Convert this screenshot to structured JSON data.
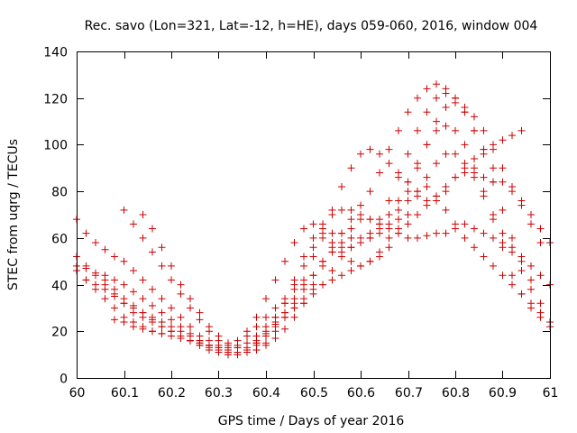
{
  "chart_data": {
    "type": "scatter",
    "title": "Rec. savo (Lon=321, Lat=-12, h=HE), days 059-060, 2016, window 004",
    "xlabel": "GPS time / Days of year 2016",
    "ylabel": "STEC from uqrg / TECUs",
    "xlim": [
      60,
      61
    ],
    "ylim": [
      0,
      140
    ],
    "xticks": [
      60,
      60.1,
      60.2,
      60.3,
      60.4,
      60.5,
      60.6,
      60.7,
      60.8,
      60.9,
      61
    ],
    "xtick_labels": [
      "60",
      "60.1",
      "60.2",
      "60.3",
      "60.4",
      "60.5",
      "60.6",
      "60.7",
      "60.8",
      "60.9",
      "61"
    ],
    "yticks": [
      0,
      20,
      40,
      60,
      80,
      100,
      120,
      140
    ],
    "ytick_labels": [
      "0",
      "20",
      "40",
      "60",
      "80",
      "100",
      "120",
      "140"
    ],
    "grid": false,
    "marker": "plus",
    "color": "#cc0000",
    "series": [
      {
        "x": [
          60.0,
          60.02,
          60.04,
          60.06,
          60.08,
          60.1,
          60.12,
          60.14,
          60.16,
          60.18,
          60.2,
          60.22,
          60.24,
          60.26,
          60.28,
          60.3,
          60.32,
          60.34,
          60.36,
          60.38,
          60.4,
          60.42,
          60.44,
          60.46,
          60.48,
          60.5,
          60.52,
          60.54,
          60.56,
          60.58,
          60.6,
          60.62,
          60.64,
          60.66,
          60.68,
          60.7,
          60.72,
          60.74,
          60.76,
          60.78,
          60.8,
          60.82,
          60.84,
          60.86,
          60.88,
          60.9,
          60.92,
          60.94,
          60.96,
          60.98,
          61.0
        ],
        "y": [
          68,
          62,
          58,
          55,
          52,
          50,
          46,
          42,
          38,
          34,
          30,
          26,
          22,
          18,
          16,
          14,
          14,
          16,
          20,
          26,
          34,
          42,
          50,
          58,
          64,
          66,
          64,
          62,
          62,
          64,
          68,
          68,
          66,
          64,
          62,
          60,
          60,
          61,
          62,
          62,
          64,
          66,
          64,
          62,
          60,
          58,
          56,
          52,
          48,
          44,
          40
        ]
      },
      {
        "x": [
          60.0,
          60.02,
          60.04,
          60.06,
          60.08,
          60.1,
          60.12,
          60.14,
          60.16,
          60.18,
          60.2,
          60.22,
          60.24,
          60.26,
          60.28,
          60.3,
          60.32,
          60.34,
          60.36,
          60.38,
          60.4,
          60.42,
          60.44,
          60.46,
          60.48,
          60.5,
          60.52,
          60.54,
          60.56,
          60.58,
          60.6,
          60.62,
          60.64,
          60.66,
          60.68,
          60.7,
          60.72,
          60.74,
          60.76,
          60.78,
          60.8,
          60.82,
          60.84,
          60.86,
          60.88,
          60.9,
          60.92,
          60.94,
          60.96,
          60.98,
          61.0
        ],
        "y": [
          48,
          47,
          45,
          42,
          38,
          34,
          31,
          28,
          25,
          22,
          20,
          18,
          16,
          14,
          13,
          12,
          12,
          14,
          18,
          22,
          26,
          30,
          34,
          38,
          40,
          44,
          50,
          56,
          62,
          68,
          74,
          80,
          88,
          98,
          106,
          114,
          120,
          124,
          126,
          124,
          120,
          114,
          106,
          98,
          90,
          84,
          80,
          76,
          70,
          64,
          58
        ]
      },
      {
        "x": [
          60.0,
          60.02,
          60.04,
          60.06,
          60.08,
          60.1,
          60.12,
          60.14,
          60.16,
          60.18,
          60.2,
          60.22,
          60.24,
          60.26,
          60.28,
          60.3,
          60.32,
          60.34,
          60.36,
          60.38,
          60.4,
          60.42,
          60.44,
          60.46,
          60.48,
          60.5,
          60.52,
          60.54,
          60.56,
          60.58,
          60.6,
          60.62,
          60.64,
          60.66,
          60.68,
          60.7,
          60.72,
          60.74,
          60.76,
          60.78,
          60.8,
          60.82,
          60.84,
          60.86,
          60.88,
          60.9,
          60.92,
          60.94,
          60.96,
          60.98,
          61.0
        ],
        "y": [
          46,
          42,
          38,
          34,
          30,
          26,
          24,
          22,
          20,
          19,
          18,
          17,
          16,
          15,
          14,
          13,
          12,
          13,
          15,
          18,
          22,
          26,
          28,
          30,
          32,
          36,
          40,
          46,
          52,
          56,
          58,
          60,
          64,
          70,
          76,
          84,
          92,
          100,
          106,
          108,
          106,
          100,
          90,
          80,
          68,
          56,
          44,
          36,
          30,
          26,
          22
        ]
      },
      {
        "x": [
          60.0,
          60.02,
          60.04,
          60.06,
          60.08,
          60.1,
          60.12,
          60.14,
          60.16,
          60.18,
          60.2,
          60.22,
          60.24,
          60.26,
          60.28,
          60.3,
          60.32,
          60.34,
          60.36,
          60.38,
          60.4,
          60.42,
          60.44,
          60.46,
          60.48,
          60.5,
          60.52,
          60.54,
          60.56,
          60.58,
          60.6,
          60.62,
          60.64,
          60.66,
          60.68,
          60.7,
          60.72,
          60.74,
          60.76,
          60.78,
          60.8,
          60.82,
          60.84,
          60.86,
          60.88,
          60.9,
          60.92,
          60.94,
          60.96,
          60.98,
          61.0
        ],
        "y": [
          52,
          48,
          44,
          40,
          36,
          32,
          28,
          26,
          24,
          22,
          20,
          18,
          16,
          14,
          12,
          11,
          10,
          10,
          12,
          16,
          20,
          26,
          32,
          40,
          48,
          56,
          60,
          58,
          54,
          50,
          48,
          50,
          54,
          60,
          68,
          76,
          80,
          82,
          78,
          72,
          66,
          60,
          56,
          52,
          48,
          44,
          40,
          36,
          32,
          28,
          24
        ]
      },
      {
        "x": [
          60.06,
          60.08,
          60.1,
          60.12,
          60.14,
          60.16,
          60.18,
          60.2,
          60.22,
          60.24,
          60.26,
          60.28,
          60.3,
          60.32,
          60.34,
          60.36,
          60.38,
          60.4,
          60.42,
          60.44,
          60.46,
          60.48,
          60.5,
          60.52,
          60.54,
          60.56,
          60.58,
          60.6,
          60.62,
          60.64,
          60.66,
          60.68,
          60.7,
          60.72,
          60.74,
          60.76,
          60.78,
          60.8,
          60.82,
          60.84,
          60.86,
          60.88,
          60.9,
          60.92,
          60.94
        ],
        "y": [
          44,
          42,
          40,
          37,
          34,
          31,
          28,
          25,
          22,
          19,
          16,
          14,
          12,
          11,
          11,
          12,
          15,
          19,
          23,
          28,
          34,
          42,
          52,
          62,
          72,
          82,
          90,
          96,
          98,
          96,
          92,
          88,
          84,
          80,
          76,
          76,
          80,
          86,
          90,
          94,
          98,
          100,
          102,
          104,
          106
        ]
      },
      {
        "x": [
          60.02,
          60.04,
          60.06,
          60.08,
          60.1,
          60.12,
          60.14,
          60.16,
          60.18,
          60.2,
          60.22,
          60.24,
          60.26,
          60.28,
          60.3,
          60.32,
          60.34,
          60.36,
          60.38,
          60.4,
          60.42,
          60.44,
          60.46,
          60.48,
          60.5,
          60.52,
          60.54,
          60.56,
          60.58,
          60.6,
          60.62,
          60.64,
          60.66,
          60.68,
          60.7,
          60.72,
          60.74,
          60.76,
          60.78,
          60.8,
          60.82,
          60.84,
          60.86,
          60.88
        ],
        "y": [
          42,
          40,
          38,
          35,
          32,
          30,
          28,
          26,
          24,
          22,
          20,
          18,
          16,
          14,
          12,
          10,
          10,
          11,
          14,
          18,
          24,
          32,
          42,
          52,
          60,
          66,
          70,
          72,
          72,
          70,
          68,
          66,
          64,
          64,
          66,
          70,
          74,
          78,
          82,
          86,
          88,
          88,
          86,
          84
        ]
      },
      {
        "x": [
          60.08,
          60.1,
          60.12,
          60.14,
          60.16,
          60.18,
          60.2,
          60.22,
          60.24,
          60.26,
          60.28,
          60.3,
          60.32,
          60.34,
          60.36,
          60.38,
          60.4,
          60.42,
          60.44,
          60.46,
          60.48,
          60.5,
          60.52,
          60.54,
          60.56,
          60.58,
          60.6,
          60.62,
          60.64,
          60.66,
          60.68,
          60.7,
          60.72,
          60.74,
          60.76,
          60.78,
          60.8,
          60.82,
          60.84,
          60.86,
          60.88,
          60.9,
          60.92,
          60.94,
          60.96,
          60.98
        ],
        "y": [
          25,
          24,
          22,
          21,
          20,
          19,
          18,
          17,
          16,
          15,
          14,
          13,
          12,
          11,
          11,
          12,
          14,
          17,
          21,
          26,
          32,
          40,
          48,
          54,
          58,
          60,
          60,
          60,
          62,
          66,
          72,
          80,
          90,
          100,
          110,
          116,
          118,
          116,
          112,
          106,
          98,
          90,
          82,
          74,
          66,
          58
        ]
      },
      {
        "x": [
          60.1,
          60.12,
          60.14,
          60.16,
          60.18,
          60.2,
          60.22,
          60.24,
          60.26,
          60.28,
          60.3,
          60.32,
          60.34,
          60.36,
          60.38,
          60.4,
          60.42,
          60.44,
          60.46,
          60.48,
          60.5,
          60.52,
          60.54,
          60.56,
          60.58,
          60.6,
          60.62,
          60.64,
          60.66,
          60.68,
          60.7,
          60.72,
          60.74,
          60.76,
          60.78,
          60.8,
          60.82,
          60.84,
          60.86,
          60.88,
          60.9,
          60.92,
          60.94,
          60.96
        ],
        "y": [
          72,
          66,
          60,
          54,
          48,
          42,
          36,
          30,
          25,
          20,
          16,
          13,
          11,
          11,
          12,
          15,
          20,
          26,
          32,
          38,
          44,
          50,
          54,
          56,
          56,
          58,
          62,
          68,
          76,
          86,
          96,
          106,
          114,
          120,
          122,
          120,
          114,
          106,
          96,
          84,
          72,
          60,
          50,
          42
        ]
      },
      {
        "x": [
          60.14,
          60.16,
          60.18,
          60.2,
          60.22,
          60.24,
          60.26,
          60.28,
          60.3,
          60.32,
          60.34,
          60.36,
          60.38,
          60.4,
          60.42,
          60.44,
          60.46,
          60.48,
          60.5,
          60.52,
          60.54,
          60.56,
          60.58,
          60.6,
          60.62,
          60.64,
          60.66,
          60.68,
          60.7,
          60.72,
          60.74,
          60.76,
          60.78,
          60.8,
          60.82,
          60.84,
          60.86,
          60.88,
          60.9,
          60.92,
          60.94,
          60.96,
          60.98
        ],
        "y": [
          70,
          64,
          56,
          48,
          40,
          34,
          28,
          22,
          18,
          15,
          13,
          13,
          15,
          18,
          22,
          26,
          30,
          34,
          38,
          40,
          42,
          44,
          46,
          48,
          50,
          52,
          56,
          62,
          70,
          78,
          86,
          92,
          96,
          96,
          92,
          86,
          78,
          70,
          62,
          54,
          46,
          38,
          32
        ]
      }
    ]
  }
}
